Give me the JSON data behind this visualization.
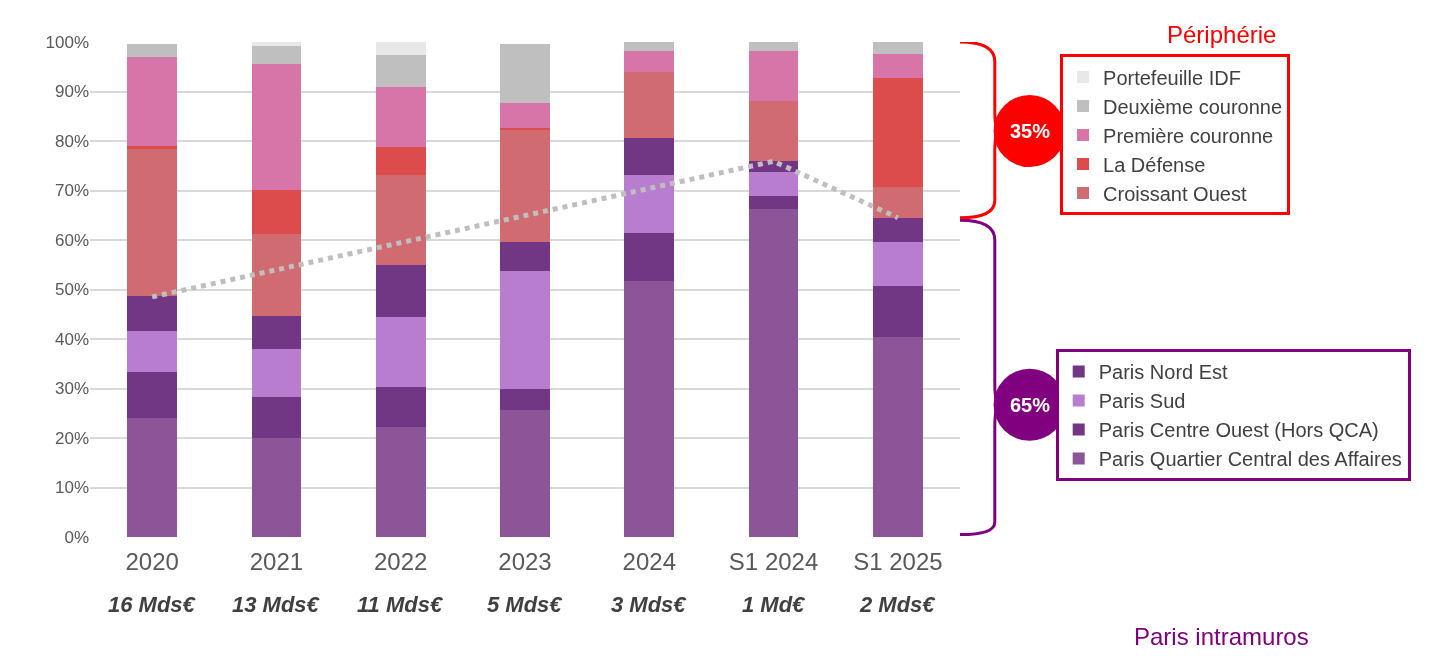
{
  "chart_data": {
    "type": "bar",
    "stacked": true,
    "categories": [
      "2020",
      "2021",
      "2022",
      "2023",
      "2024",
      "S1 2024",
      "S1 2025"
    ],
    "series": [
      {
        "name": "Paris Quartier Central des Affaires",
        "color": "#8b5597",
        "values": [
          24.1,
          20.1,
          22.2,
          25.6,
          51.7,
          66.2,
          40.4
        ]
      },
      {
        "name": "Paris Centre Ouest (Hors QCA)",
        "color": "#713785",
        "values": [
          9.3,
          8.2,
          8.1,
          4.3,
          9.8,
          2.7,
          10.3
        ]
      },
      {
        "name": "Paris Sud",
        "color": "#b87dcf",
        "values": [
          8.2,
          9.6,
          14.1,
          23.8,
          11.6,
          4.8,
          8.9
        ]
      },
      {
        "name": "Paris Nord Est",
        "color": "#713785",
        "values": [
          7.1,
          6.7,
          10.5,
          5.9,
          7.6,
          2.2,
          4.9
        ]
      },
      {
        "name": "Croissant Ouest",
        "color": "#d16b72",
        "values": [
          29.7,
          16.6,
          18.2,
          22.8,
          13.3,
          12.2,
          6.2
        ]
      },
      {
        "name": "La Défense",
        "color": "#dc4c4c",
        "values": [
          0.6,
          8.9,
          5.6,
          0.3,
          0,
          0,
          22.1
        ]
      },
      {
        "name": "Première couronne",
        "color": "#d775a9",
        "values": [
          18.0,
          25.5,
          12.3,
          5.0,
          4.1,
          10.1,
          4.8
        ]
      },
      {
        "name": "Deuxième couronne",
        "color": "#bfbfbf",
        "values": [
          2.5,
          3.5,
          6.4,
          11.9,
          1.9,
          1.8,
          2.4
        ]
      },
      {
        "name": "Portefeuille IDF",
        "color": "#e8e8e8",
        "values": [
          0,
          0.8,
          2.6,
          0,
          0,
          0,
          0
        ]
      },
      {
        "type": "line",
        "color": "#bfbfbf",
        "line_style": "dotted",
        "marker": "none",
        "values": [
          48.5,
          null,
          null,
          null,
          null,
          75.9,
          64.5
        ]
      }
    ],
    "ylim": [
      0,
      100
    ],
    "yticks": [
      {
        "value": 0,
        "label": "0%"
      },
      {
        "value": 10,
        "label": "10%"
      },
      {
        "value": 20,
        "label": "20%"
      },
      {
        "value": 30,
        "label": "30%"
      },
      {
        "value": 40,
        "label": "40%"
      },
      {
        "value": 50,
        "label": "50%"
      },
      {
        "value": 60,
        "label": "60%"
      },
      {
        "value": 70,
        "label": "70%"
      },
      {
        "value": 80,
        "label": "80%"
      },
      {
        "value": 90,
        "label": "90%"
      },
      {
        "value": 100,
        "label": "100%"
      }
    ],
    "grid": "y",
    "legend": "right",
    "annotations": [
      "16 Mds€",
      "13 Mds€",
      "11 Mds€",
      "5 Mds€",
      "3 Mds€",
      "1 Md€",
      "2 Mds€",
      "Périphérie",
      "Paris intramuros",
      "35%",
      "65%"
    ]
  }
}
